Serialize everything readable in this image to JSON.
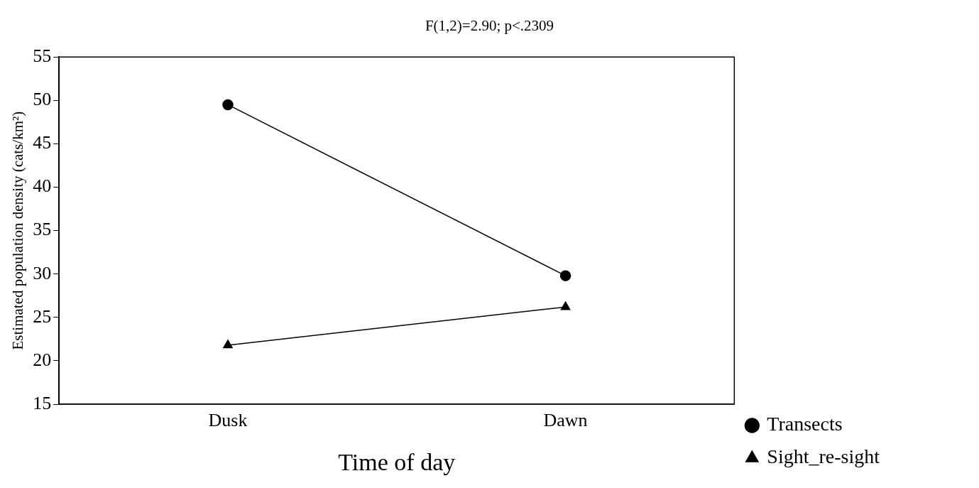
{
  "chart_data": {
    "type": "line",
    "title": "F(1,2)=2.90; p<.2309",
    "xlabel": "Time of day",
    "ylabel": "Estimated population density (cats/km²)",
    "categories": [
      "Dusk",
      "Dawn"
    ],
    "series": [
      {
        "name": "Transects",
        "color": "#000000",
        "values": [
          49.5,
          29.8
        ],
        "marker": "circle"
      },
      {
        "name": "Sight_re-sight",
        "color": "#000000",
        "values": [
          21.8,
          26.2
        ],
        "marker": "triangle"
      }
    ],
    "ylim": [
      15,
      55
    ],
    "yticks": [
      15,
      20,
      25,
      30,
      35,
      40,
      45,
      50,
      55
    ],
    "grid": false,
    "legend": "right",
    "line_style": "solid"
  }
}
